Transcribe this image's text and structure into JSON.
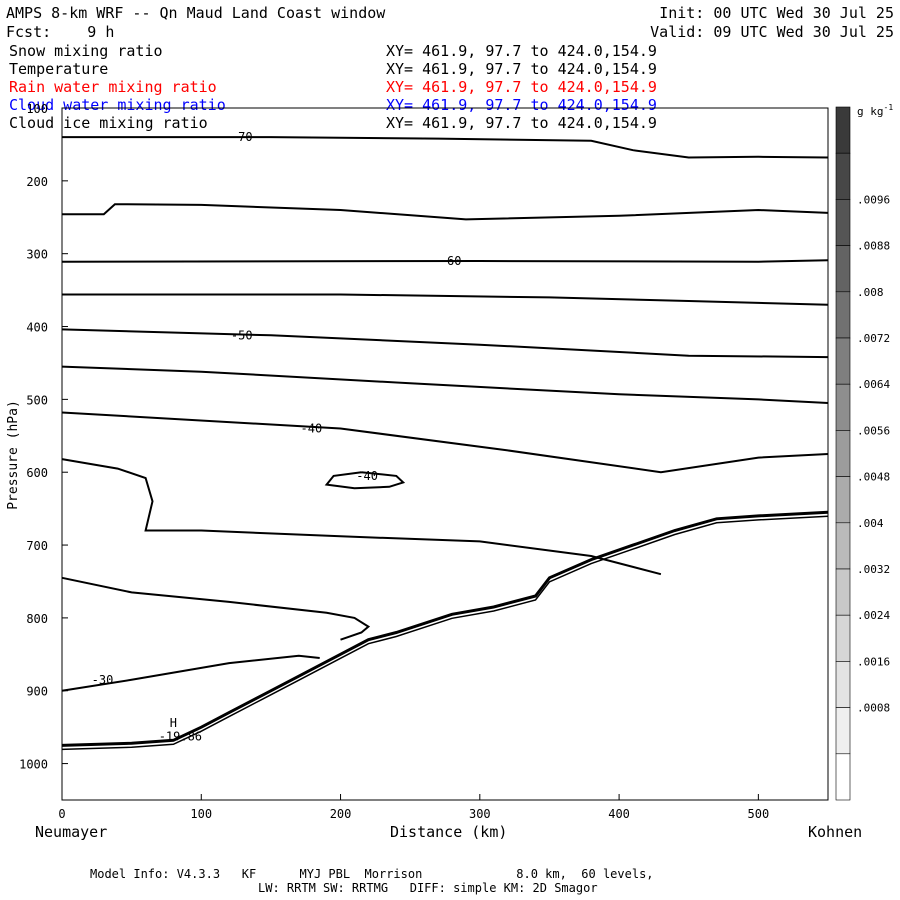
{
  "header": {
    "title": "AMPS 8-km WRF -- Qn Maud Land Coast window",
    "init": "Init: 00 UTC Wed 30 Jul 25",
    "fcst": "Fcst:    9 h",
    "valid": "Valid: 09 UTC Wed 30 Jul 25"
  },
  "fields": [
    {
      "name": "Snow mixing ratio",
      "xy": "XY= 461.9, 97.7 to 424.0,154.9",
      "color": "#000000"
    },
    {
      "name": "Temperature",
      "xy": "XY= 461.9, 97.7 to 424.0,154.9",
      "color": "#000000"
    },
    {
      "name": "Rain water mixing ratio",
      "xy": "XY= 461.9, 97.7 to 424.0,154.9",
      "color": "#ff0000"
    },
    {
      "name": "Cloud water mixing ratio",
      "xy": "XY= 461.9, 97.7 to 424.0,154.9",
      "color": "#0000ff"
    },
    {
      "name": "Cloud ice mixing ratio",
      "xy": "XY= 461.9, 97.7 to 424.0,154.9",
      "color": "#000000"
    }
  ],
  "footer": {
    "line1": "Model Info: V4.3.3   KF      MYJ PBL  Morrison             8.0 km,  60 levels,",
    "line2": "LW: RRTM SW: RRTMG   DIFF: simple KM: 2D Smagor"
  },
  "chart_data": {
    "type": "contour",
    "xlabel": "Distance (km)",
    "ylabel": "Pressure (hPa)",
    "x_left_label": "Neumayer",
    "x_right_label": "Kohnen",
    "xlim": [
      0,
      550
    ],
    "ylim": [
      1050,
      100
    ],
    "xticks": [
      0,
      100,
      200,
      300,
      400,
      500
    ],
    "yticks": [
      100,
      200,
      300,
      400,
      500,
      600,
      700,
      800,
      900,
      1000
    ],
    "colorbar": {
      "unit": "g kg",
      "unit_exp": "-1",
      "ticks": [
        ".0096",
        ".0088",
        ".008",
        ".0072",
        ".0064",
        ".0056",
        ".0048",
        ".004",
        ".0032",
        ".0024",
        ".0016",
        ".0008"
      ],
      "colors": [
        "#3a3a3a",
        "#474747",
        "#555555",
        "#636363",
        "#717171",
        "#7f7f7f",
        "#8e8e8e",
        "#9c9c9c",
        "#ababab",
        "#bababa",
        "#c8c8c8",
        "#d6d6d6",
        "#e3e3e3",
        "#efefef",
        "#ffffff"
      ]
    },
    "temperature_contours": [
      {
        "label": "-70",
        "points": [
          [
            0,
            140
          ],
          [
            150,
            140
          ],
          [
            270,
            142
          ],
          [
            380,
            145
          ],
          [
            410,
            158
          ],
          [
            450,
            168
          ],
          [
            500,
            167
          ],
          [
            550,
            168
          ]
        ]
      },
      {
        "label": "",
        "points": [
          [
            0,
            246
          ],
          [
            30,
            246
          ],
          [
            38,
            232
          ],
          [
            100,
            233
          ],
          [
            200,
            240
          ],
          [
            290,
            253
          ],
          [
            400,
            248
          ],
          [
            500,
            240
          ],
          [
            550,
            244
          ]
        ]
      },
      {
        "label": "-60",
        "points": [
          [
            0,
            311
          ],
          [
            300,
            310
          ],
          [
            500,
            311
          ],
          [
            550,
            309
          ]
        ]
      },
      {
        "label": "",
        "points": [
          [
            0,
            356
          ],
          [
            200,
            356
          ],
          [
            350,
            360
          ],
          [
            450,
            365
          ],
          [
            550,
            370
          ]
        ]
      },
      {
        "label": "-50",
        "points": [
          [
            0,
            404
          ],
          [
            150,
            412
          ],
          [
            300,
            425
          ],
          [
            450,
            440
          ],
          [
            550,
            442
          ]
        ]
      },
      {
        "label": "",
        "points": [
          [
            0,
            455
          ],
          [
            100,
            462
          ],
          [
            250,
            478
          ],
          [
            400,
            493
          ],
          [
            500,
            500
          ],
          [
            550,
            505
          ]
        ]
      },
      {
        "label": "-40",
        "points": [
          [
            0,
            518
          ],
          [
            200,
            540
          ],
          [
            320,
            570
          ],
          [
            430,
            600
          ],
          [
            500,
            580
          ],
          [
            550,
            575
          ]
        ]
      },
      {
        "label": "",
        "points": [
          [
            0,
            582
          ],
          [
            40,
            595
          ],
          [
            60,
            608
          ],
          [
            65,
            640
          ],
          [
            60,
            680
          ],
          [
            100,
            680
          ],
          [
            200,
            688
          ],
          [
            300,
            695
          ],
          [
            380,
            715
          ],
          [
            430,
            740
          ]
        ]
      },
      {
        "label": "",
        "points": [
          [
            0,
            745
          ],
          [
            50,
            765
          ],
          [
            120,
            778
          ],
          [
            190,
            793
          ],
          [
            210,
            800
          ],
          [
            220,
            812
          ],
          [
            215,
            820
          ],
          [
            200,
            830
          ]
        ]
      },
      {
        "label": "-40",
        "points": [
          [
            215,
            600
          ],
          [
            240,
            605
          ],
          [
            245,
            614
          ],
          [
            235,
            620
          ],
          [
            210,
            622
          ],
          [
            190,
            617
          ],
          [
            195,
            605
          ],
          [
            215,
            600
          ]
        ]
      },
      {
        "label": "-30",
        "points": [
          [
            0,
            900
          ],
          [
            50,
            885
          ],
          [
            120,
            862
          ],
          [
            170,
            852
          ],
          [
            185,
            855
          ]
        ]
      }
    ],
    "terrain": {
      "points": [
        [
          0,
          975
        ],
        [
          50,
          972
        ],
        [
          80,
          968
        ],
        [
          100,
          950
        ],
        [
          120,
          930
        ],
        [
          145,
          905
        ],
        [
          170,
          880
        ],
        [
          200,
          850
        ],
        [
          220,
          830
        ],
        [
          240,
          820
        ],
        [
          280,
          795
        ],
        [
          310,
          785
        ],
        [
          340,
          770
        ],
        [
          350,
          745
        ],
        [
          380,
          720
        ],
        [
          410,
          700
        ],
        [
          440,
          680
        ],
        [
          470,
          664
        ],
        [
          500,
          660
        ],
        [
          550,
          655
        ]
      ]
    },
    "annotations": [
      {
        "text": "H",
        "x": 80,
        "y": 950
      },
      {
        "text": "-19.86",
        "x": 85,
        "y": 968
      }
    ]
  }
}
